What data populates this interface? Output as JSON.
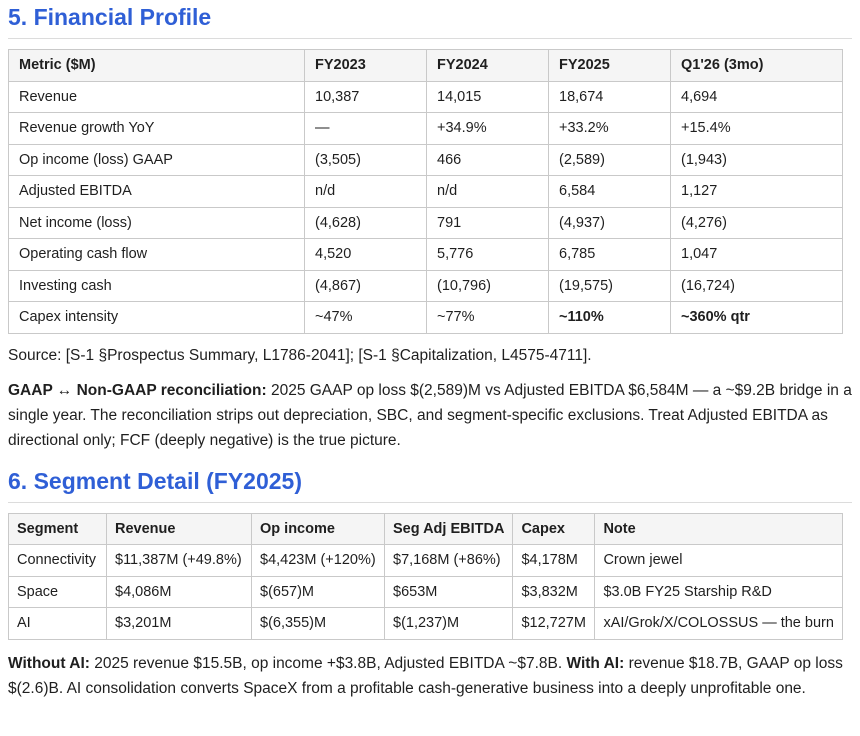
{
  "section5": {
    "title": "5. Financial Profile",
    "columns": [
      "Metric ($M)",
      "FY2023",
      "FY2024",
      "FY2025",
      "Q1'26 (3mo)"
    ],
    "rows": [
      [
        "Revenue",
        "10,387",
        "14,015",
        "18,674",
        "4,694"
      ],
      [
        "Revenue growth YoY",
        "—",
        "+34.9%",
        "+33.2%",
        "+15.4%"
      ],
      [
        "Op income (loss) GAAP",
        "(3,505)",
        "466",
        "(2,589)",
        "(1,943)"
      ],
      [
        "Adjusted EBITDA",
        "n/d",
        "n/d",
        "6,584",
        "1,127"
      ],
      [
        "Net income (loss)",
        "(4,628)",
        "791",
        "(4,937)",
        "(4,276)"
      ],
      [
        "Operating cash flow",
        "4,520",
        "5,776",
        "6,785",
        "1,047"
      ],
      [
        "Investing cash",
        "(4,867)",
        "(10,796)",
        "(19,575)",
        "(16,724)"
      ],
      [
        "Capex intensity",
        "~47%",
        "~77%",
        "~110%",
        "~360% qtr"
      ]
    ],
    "source": "Source: [S-1 §Prospectus Summary, L1786-2041]; [S-1 §Capitalization, L4575-4711].",
    "recon_lead": "GAAP ↔ Non-GAAP reconciliation:",
    "recon_body": " 2025 GAAP op loss $(2,589)M vs Adjusted EBITDA $6,584M — a ~$9.2B bridge in a single year. The reconciliation strips out depreciation, SBC, and segment-specific exclusions. Treat Adjusted EBITDA as directional only; FCF (deeply negative) is the true picture."
  },
  "section6": {
    "title": "6. Segment Detail (FY2025)",
    "columns": [
      "Segment",
      "Revenue",
      "Op income",
      "Seg Adj EBITDA",
      "Capex",
      "Note"
    ],
    "rows": [
      [
        "Connectivity",
        "$11,387M (+49.8%)",
        "$4,423M (+120%)",
        "$7,168M (+86%)",
        "$4,178M",
        "Crown jewel"
      ],
      [
        "Space",
        "$4,086M",
        "$(657)M",
        "$653M",
        "$3,832M",
        "$3.0B FY25 Starship R&D"
      ],
      [
        "AI",
        "$3,201M",
        "$(6,355)M",
        "$(1,237)M",
        "$12,727M",
        "xAI/Grok/X/COLOSSUS — the burn"
      ]
    ],
    "note_lead1": "Without AI:",
    "note_body1": " 2025 revenue $15.5B, op income +$3.8B, Adjusted EBITDA ~$7.8B. ",
    "note_lead2": "With AI:",
    "note_body2": " revenue $18.7B, GAAP op loss $(2.6)B. AI consolidation converts SpaceX from a profitable cash-generative business into a deeply unprofitable one."
  },
  "colors": {
    "heading": "#2f5fd6",
    "header_bg": "#f5f5f5",
    "border": "#c9c9c9"
  }
}
